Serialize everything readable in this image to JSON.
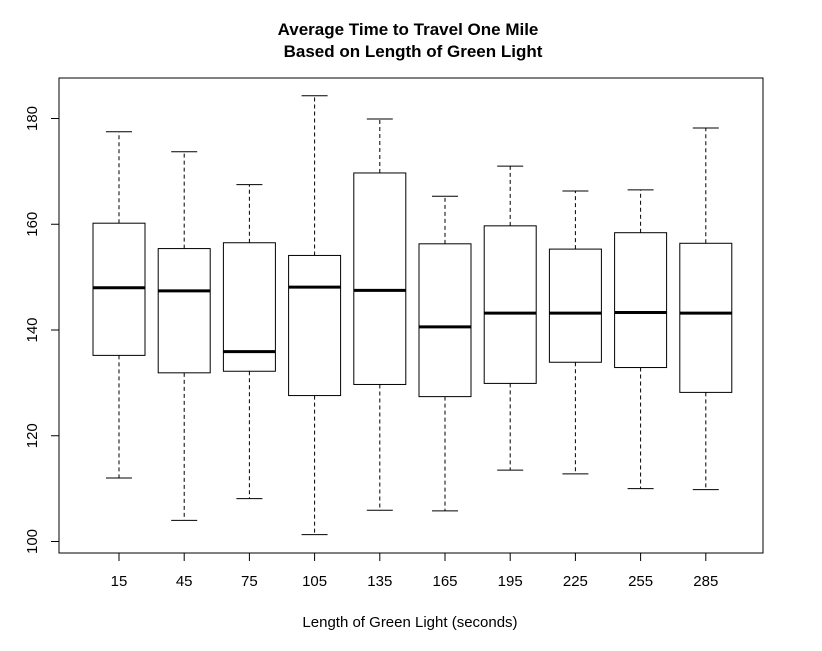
{
  "chart_data": {
    "type": "boxplot",
    "title_line1": "Average Time to Travel One Mile",
    "title_line2": "Based on Length of Green Light",
    "xlabel": "Length of Green Light (seconds)",
    "ylabel": "",
    "ylim": [
      98,
      187
    ],
    "yticks": [
      "100",
      "120",
      "140",
      "160",
      "180"
    ],
    "grid": false,
    "legend": "none",
    "categories": [
      "15",
      "45",
      "75",
      "105",
      "135",
      "165",
      "195",
      "225",
      "255",
      "285"
    ],
    "boxes": [
      {
        "category": "15",
        "min": 112.0,
        "q1": 135.2,
        "median": 148.0,
        "q3": 160.2,
        "max": 177.5
      },
      {
        "category": "45",
        "min": 104.0,
        "q1": 131.9,
        "median": 147.4,
        "q3": 155.4,
        "max": 173.7
      },
      {
        "category": "75",
        "min": 108.1,
        "q1": 132.2,
        "median": 135.9,
        "q3": 156.5,
        "max": 167.5
      },
      {
        "category": "105",
        "min": 101.3,
        "q1": 127.6,
        "median": 148.1,
        "q3": 154.1,
        "max": 184.3
      },
      {
        "category": "135",
        "min": 105.9,
        "q1": 129.7,
        "median": 147.5,
        "q3": 169.7,
        "max": 179.9
      },
      {
        "category": "165",
        "min": 105.8,
        "q1": 127.4,
        "median": 140.6,
        "q3": 156.3,
        "max": 165.3
      },
      {
        "category": "195",
        "min": 113.5,
        "q1": 129.9,
        "median": 143.2,
        "q3": 159.7,
        "max": 171.0
      },
      {
        "category": "225",
        "min": 112.8,
        "q1": 133.9,
        "median": 143.2,
        "q3": 155.3,
        "max": 166.3
      },
      {
        "category": "255",
        "min": 110.0,
        "q1": 132.9,
        "median": 143.3,
        "q3": 158.4,
        "max": 166.5
      },
      {
        "category": "285",
        "min": 109.8,
        "q1": 128.2,
        "median": 143.2,
        "q3": 156.4,
        "max": 178.2
      }
    ]
  }
}
